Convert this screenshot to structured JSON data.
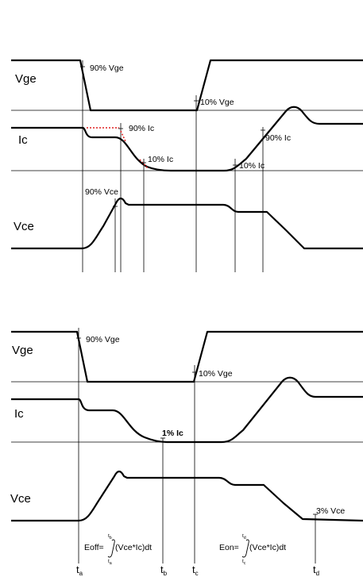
{
  "top": {
    "labels": {
      "vge": "Vge",
      "ic": "Ic",
      "vce": "Vce"
    },
    "annotations": {
      "vge90": "90% Vge",
      "vge10": "10% Vge",
      "ic90_off": "90% Ic",
      "ic10_off": "10% Ic",
      "ic10_on": "10% Ic",
      "ic90_on": "90% Ic",
      "vce90": "90% Vce"
    }
  },
  "bottom": {
    "labels": {
      "vge": "Vge",
      "ic": "Ic",
      "vce": "Vce"
    },
    "annotations": {
      "vge90": "90% Vge",
      "vge10": "10% Vge",
      "ic1": "1% Ic",
      "vce3": "3% Vce"
    },
    "eoff": {
      "label": "Eoff=",
      "integrand": "(Vce*Ic)dt",
      "upper": "t",
      "upper_sub": "b",
      "lower": "t",
      "lower_sub": "a"
    },
    "eon": {
      "label": "Eon=",
      "integrand": "(Vce*Ic)dt",
      "upper": "t",
      "upper_sub": "d",
      "lower": "t",
      "lower_sub": "c"
    },
    "time_marks": [
      {
        "t": "t",
        "sub": "a"
      },
      {
        "t": "t",
        "sub": "b"
      },
      {
        "t": "t",
        "sub": "c"
      },
      {
        "t": "t",
        "sub": "d"
      }
    ]
  },
  "colors": {
    "waveform": "#000000",
    "reference_dotted": "#e02020"
  }
}
